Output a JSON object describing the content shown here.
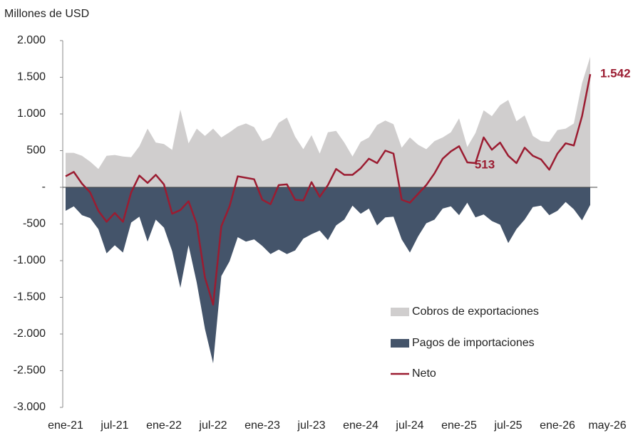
{
  "chart_data": {
    "type": "area-line",
    "y_label": "Millones de USD",
    "categories": [
      "ene-21",
      null,
      null,
      null,
      null,
      null,
      "jul-21",
      null,
      null,
      null,
      null,
      null,
      "ene-22",
      null,
      null,
      null,
      null,
      null,
      "jul-22",
      null,
      null,
      null,
      null,
      null,
      "ene-23",
      null,
      null,
      null,
      null,
      null,
      "jul-23",
      null,
      null,
      null,
      null,
      null,
      "ene-24",
      null,
      null,
      null,
      null,
      null,
      "jul-24",
      null,
      null,
      null,
      null,
      null,
      "ene-25",
      null,
      null,
      null,
      null,
      null,
      "jul-25",
      null,
      null,
      null,
      null,
      null,
      "ene-26",
      null,
      null,
      null,
      "may-26"
    ],
    "series": [
      {
        "name": "Cobros de exportaciones",
        "kind": "area",
        "color": "#d0cece",
        "values": [
          470,
          470,
          430,
          350,
          250,
          430,
          440,
          420,
          410,
          560,
          800,
          610,
          590,
          510,
          1060,
          600,
          800,
          700,
          800,
          680,
          750,
          830,
          870,
          820,
          630,
          680,
          880,
          950,
          690,
          520,
          710,
          460,
          750,
          770,
          610,
          420,
          620,
          680,
          850,
          910,
          860,
          540,
          680,
          580,
          520,
          630,
          680,
          750,
          940,
          550,
          740,
          1050,
          970,
          1120,
          1190,
          900,
          980,
          700,
          630,
          620,
          780,
          800,
          870,
          1420,
          1780
        ]
      },
      {
        "name": "Pagos de importaciones",
        "kind": "area",
        "color": "#44546a",
        "values": [
          -320,
          -260,
          -380,
          -420,
          -570,
          -900,
          -790,
          -890,
          -480,
          -400,
          -740,
          -440,
          -550,
          -870,
          -1370,
          -790,
          -1300,
          -1930,
          -2400,
          -1210,
          -1010,
          -680,
          -740,
          -710,
          -800,
          -910,
          -850,
          -910,
          -860,
          -700,
          -640,
          -590,
          -720,
          -520,
          -440,
          -250,
          -360,
          -290,
          -520,
          -410,
          -400,
          -710,
          -890,
          -670,
          -490,
          -440,
          -290,
          -260,
          -380,
          -210,
          -410,
          -370,
          -460,
          -510,
          -760,
          -570,
          -440,
          -270,
          -250,
          -380,
          -320,
          -200,
          -300,
          -450,
          -240
        ]
      },
      {
        "name": "Neto",
        "kind": "line",
        "color": "#9b1c31",
        "values": [
          150,
          210,
          50,
          -70,
          -320,
          -470,
          -350,
          -470,
          -70,
          160,
          60,
          170,
          40,
          -360,
          -310,
          -190,
          -500,
          -1230,
          -1600,
          -530,
          -260,
          150,
          130,
          110,
          -170,
          -230,
          30,
          40,
          -170,
          -180,
          70,
          -130,
          30,
          250,
          170,
          170,
          260,
          390,
          330,
          500,
          460,
          -170,
          -210,
          -90,
          30,
          190,
          390,
          490,
          560,
          340,
          330,
          680,
          513,
          610,
          430,
          330,
          540,
          430,
          380,
          240,
          460,
          600,
          570,
          970,
          1542
        ],
        "value_labels": [
          null,
          null,
          null,
          null,
          null,
          null,
          null,
          null,
          null,
          null,
          null,
          null,
          null,
          null,
          null,
          null,
          null,
          null,
          null,
          null,
          null,
          null,
          null,
          null,
          null,
          null,
          null,
          null,
          null,
          null,
          null,
          null,
          null,
          null,
          null,
          null,
          null,
          null,
          null,
          null,
          null,
          null,
          null,
          null,
          null,
          null,
          null,
          null,
          null,
          null,
          null,
          null,
          "513",
          null,
          null,
          null,
          null,
          null,
          null,
          null,
          null,
          null,
          null,
          null,
          "1.542"
        ]
      }
    ],
    "ylim": [
      -3000,
      2000
    ],
    "yticks": [
      {
        "value": 2000,
        "label": "2.000"
      },
      {
        "value": 1500,
        "label": "1.500"
      },
      {
        "value": 1000,
        "label": "1.000"
      },
      500,
      {
        "value": 0,
        "label": "-"
      },
      -500,
      {
        "value": -1000,
        "label": "-1.000"
      },
      {
        "value": -1500,
        "label": "-1.500"
      },
      {
        "value": -2000,
        "label": "-2.000"
      },
      {
        "value": -2500,
        "label": "-2.500"
      },
      {
        "value": -3000,
        "label": "-3.000"
      }
    ],
    "grid": false,
    "legend": "lower right"
  }
}
